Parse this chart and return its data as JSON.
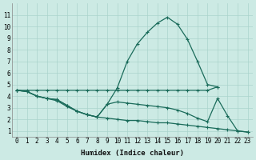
{
  "xlabel": "Humidex (Indice chaleur)",
  "xlim": [
    -0.5,
    23.5
  ],
  "ylim": [
    0.5,
    12
  ],
  "xticks": [
    0,
    1,
    2,
    3,
    4,
    5,
    6,
    7,
    8,
    9,
    10,
    11,
    12,
    13,
    14,
    15,
    16,
    17,
    18,
    19,
    20,
    21,
    22,
    23
  ],
  "yticks": [
    1,
    2,
    3,
    4,
    5,
    6,
    7,
    8,
    9,
    10,
    11
  ],
  "bg_color": "#cceae4",
  "grid_color": "#aad4cc",
  "line_color": "#1a6b5a",
  "lines": [
    {
      "x": [
        0,
        1,
        2,
        3,
        4,
        5,
        6,
        7,
        8,
        9,
        10,
        11,
        12,
        13,
        14,
        15,
        16,
        17,
        18,
        19,
        20
      ],
      "y": [
        4.5,
        4.4,
        4.0,
        3.8,
        3.7,
        3.2,
        2.7,
        2.4,
        2.2,
        3.3,
        4.7,
        7.0,
        8.5,
        9.5,
        10.3,
        10.8,
        10.2,
        8.9,
        7.0,
        5.0,
        4.8
      ]
    },
    {
      "x": [
        0,
        1,
        2,
        3,
        4,
        5,
        6,
        7,
        8,
        9,
        10,
        11,
        12,
        13,
        14,
        15,
        16,
        17,
        18,
        19,
        20
      ],
      "y": [
        4.5,
        4.5,
        4.5,
        4.5,
        4.5,
        4.5,
        4.5,
        4.5,
        4.5,
        4.5,
        4.5,
        4.5,
        4.5,
        4.5,
        4.5,
        4.5,
        4.5,
        4.5,
        4.5,
        4.5,
        4.8
      ]
    },
    {
      "x": [
        0,
        1,
        2,
        3,
        4,
        5,
        6,
        7,
        8,
        9,
        10,
        11,
        12,
        13,
        14,
        15,
        16,
        17,
        18,
        19,
        20,
        21,
        22,
        23
      ],
      "y": [
        4.5,
        4.4,
        4.0,
        3.8,
        3.6,
        3.1,
        2.7,
        2.4,
        2.2,
        3.3,
        3.5,
        3.4,
        3.3,
        3.2,
        3.1,
        3.0,
        2.8,
        2.5,
        2.1,
        1.8,
        3.8,
        2.3,
        1.0,
        0.9
      ]
    },
    {
      "x": [
        0,
        1,
        2,
        3,
        4,
        5,
        6,
        7,
        8,
        9,
        10,
        11,
        12,
        13,
        14,
        15,
        16,
        17,
        18,
        19,
        20,
        21,
        22,
        23
      ],
      "y": [
        4.5,
        4.4,
        4.0,
        3.8,
        3.7,
        3.2,
        2.7,
        2.4,
        2.2,
        2.1,
        2.0,
        1.9,
        1.9,
        1.8,
        1.7,
        1.7,
        1.6,
        1.5,
        1.4,
        1.3,
        1.2,
        1.1,
        1.0,
        0.9
      ]
    }
  ],
  "marker": "+",
  "markersize": 3.5,
  "linewidth": 0.9
}
